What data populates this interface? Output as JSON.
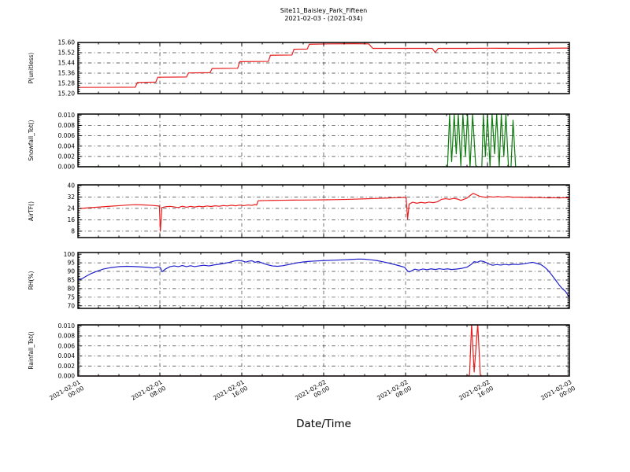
{
  "title": {
    "line1": "Site11_Baisley_Park_Fifteen",
    "line2": "2021-02-03 - (2021-034)"
  },
  "xlabel": "Date/Time",
  "x_axis": {
    "unit": "hours since 2021-02-01 00:00",
    "range": [
      0,
      48
    ],
    "tick_interval_hours": 8,
    "grid": true
  },
  "x_ticks": [
    {
      "date": "2021-02-01",
      "time": "00:00"
    },
    {
      "date": "2021-02-01",
      "time": "08:00"
    },
    {
      "date": "2021-02-01",
      "time": "16:00"
    },
    {
      "date": "2021-02-02",
      "time": "00:00"
    },
    {
      "date": "2021-02-02",
      "time": "08:00"
    },
    {
      "date": "2021-02-02",
      "time": "16:00"
    },
    {
      "date": "2021-02-03",
      "time": "00:00"
    }
  ],
  "chart_data": [
    {
      "type": "line",
      "ylabel": "P(unitless)",
      "color": "#e81e1e",
      "ylim": [
        15.2,
        15.6
      ],
      "yticks": [
        15.2,
        15.28,
        15.36,
        15.44,
        15.52,
        15.6
      ],
      "ytick_labels": [
        "15.20",
        "15.28",
        "15.36",
        "15.44",
        "15.52",
        "15.60"
      ],
      "ygrid": [
        15.28,
        15.36,
        15.44,
        15.52
      ],
      "points": [
        [
          0,
          15.248
        ],
        [
          3,
          15.249
        ],
        [
          5.6,
          15.25
        ],
        [
          5.8,
          15.287
        ],
        [
          7.6,
          15.29
        ],
        [
          7.8,
          15.328
        ],
        [
          10.6,
          15.33
        ],
        [
          10.8,
          15.362
        ],
        [
          12.9,
          15.364
        ],
        [
          13.1,
          15.396
        ],
        [
          15.6,
          15.398
        ],
        [
          15.8,
          15.45
        ],
        [
          18.6,
          15.452
        ],
        [
          18.8,
          15.5
        ],
        [
          20.9,
          15.502
        ],
        [
          21.1,
          15.547
        ],
        [
          22.4,
          15.549
        ],
        [
          22.6,
          15.586
        ],
        [
          24.5,
          15.589
        ],
        [
          27,
          15.59
        ],
        [
          28.4,
          15.589
        ],
        [
          28.8,
          15.554
        ],
        [
          31,
          15.554
        ],
        [
          34.6,
          15.554
        ],
        [
          34.9,
          15.522
        ],
        [
          35.2,
          15.554
        ],
        [
          38,
          15.554
        ],
        [
          40,
          15.555
        ],
        [
          44,
          15.554
        ],
        [
          48,
          15.556
        ]
      ]
    },
    {
      "type": "line",
      "ylabel": "Snowfall_Tot()",
      "color": "#0e7c0e",
      "ylim": [
        0,
        0.0102
      ],
      "yticks": [
        0.0,
        0.002,
        0.004,
        0.006,
        0.008,
        0.01
      ],
      "ytick_labels": [
        "0.000",
        "0.002",
        "0.004",
        "0.006",
        "0.008",
        "0.010"
      ],
      "ygrid": [
        0.002,
        0.004,
        0.006,
        0.008
      ],
      "points": [
        [
          0,
          0
        ],
        [
          36.1,
          0
        ],
        [
          36.3,
          0.0101
        ],
        [
          36.5,
          0.001
        ],
        [
          36.75,
          0.0101
        ],
        [
          36.95,
          0.0025
        ],
        [
          37.15,
          0.0101
        ],
        [
          37.4,
          0.0002
        ],
        [
          37.6,
          0.0101
        ],
        [
          37.85,
          0.002
        ],
        [
          38.05,
          0.0101
        ],
        [
          38.3,
          0
        ],
        [
          38.55,
          0.0101
        ],
        [
          38.85,
          0.0003
        ],
        [
          39.0,
          0
        ],
        [
          39.45,
          0
        ],
        [
          39.6,
          0.0101
        ],
        [
          39.8,
          0.002
        ],
        [
          40.0,
          0.0101
        ],
        [
          40.25,
          0
        ],
        [
          40.45,
          0.0101
        ],
        [
          40.7,
          0.0025
        ],
        [
          40.9,
          0.0101
        ],
        [
          41.15,
          0
        ],
        [
          41.35,
          0.0101
        ],
        [
          41.6,
          0.002
        ],
        [
          41.8,
          0.0101
        ],
        [
          42.05,
          0
        ],
        [
          42.3,
          0
        ],
        [
          42.5,
          0.009
        ],
        [
          42.75,
          0
        ],
        [
          43,
          0
        ],
        [
          48,
          0
        ]
      ]
    },
    {
      "type": "line",
      "ylabel": "AirTF()",
      "color": "#e81e1e",
      "ylim": [
        3.5,
        40.5
      ],
      "yticks": [
        8,
        16,
        24,
        32,
        40
      ],
      "ytick_labels": [
        "8",
        "16",
        "24",
        "32",
        "40"
      ],
      "ygrid": [
        8,
        16,
        24,
        32
      ],
      "points": [
        [
          0,
          23.8
        ],
        [
          0.8,
          24.3
        ],
        [
          1.6,
          24.7
        ],
        [
          2.4,
          25.1
        ],
        [
          3.2,
          25.5
        ],
        [
          4,
          25.9
        ],
        [
          4.8,
          26.3
        ],
        [
          5.6,
          26.6
        ],
        [
          6.4,
          26.4
        ],
        [
          7.2,
          26.1
        ],
        [
          7.7,
          25.8
        ],
        [
          7.95,
          25.6
        ],
        [
          8.05,
          8
        ],
        [
          8.2,
          24.6
        ],
        [
          8.6,
          25.2
        ],
        [
          9,
          25.4
        ],
        [
          9.4,
          25.0
        ],
        [
          9.8,
          24.6
        ],
        [
          10.2,
          25.5
        ],
        [
          10.6,
          24.8
        ],
        [
          11,
          25.4
        ],
        [
          11.4,
          24.9
        ],
        [
          11.8,
          25.5
        ],
        [
          12.2,
          25.1
        ],
        [
          12.6,
          25.7
        ],
        [
          13,
          25.3
        ],
        [
          13.4,
          25.8
        ],
        [
          13.8,
          25.5
        ],
        [
          14.2,
          26.0
        ],
        [
          14.6,
          25.7
        ],
        [
          15,
          26.2
        ],
        [
          15.4,
          25.8
        ],
        [
          15.8,
          26.3
        ],
        [
          16.2,
          25.9
        ],
        [
          16.6,
          26.4
        ],
        [
          17,
          26.1
        ],
        [
          17.3,
          26.7
        ],
        [
          17.45,
          26.3
        ],
        [
          17.6,
          29.3
        ],
        [
          18.2,
          29.5
        ],
        [
          19,
          29.6
        ],
        [
          20,
          29.7
        ],
        [
          21,
          29.8
        ],
        [
          22,
          29.85
        ],
        [
          23,
          29.9
        ],
        [
          24,
          30.0
        ],
        [
          25,
          30.1
        ],
        [
          26,
          30.25
        ],
        [
          27,
          30.45
        ],
        [
          28,
          30.7
        ],
        [
          29,
          30.95
        ],
        [
          30,
          31.2
        ],
        [
          31,
          31.5
        ],
        [
          31.9,
          31.7
        ],
        [
          32.05,
          31.7
        ],
        [
          32.2,
          16.5
        ],
        [
          32.35,
          27.0
        ],
        [
          32.7,
          28.3
        ],
        [
          33.1,
          27.6
        ],
        [
          33.5,
          28.2
        ],
        [
          33.9,
          27.8
        ],
        [
          34.3,
          28.4
        ],
        [
          34.7,
          28.0
        ],
        [
          35.1,
          28.6
        ],
        [
          35.5,
          30.3
        ],
        [
          35.9,
          30.8
        ],
        [
          36.3,
          30.4
        ],
        [
          36.7,
          31.0
        ],
        [
          37.1,
          30.5
        ],
        [
          37.4,
          29.6
        ],
        [
          37.7,
          30.4
        ],
        [
          38,
          31.2
        ],
        [
          38.3,
          33.0
        ],
        [
          38.6,
          34.5
        ],
        [
          38.9,
          33.6
        ],
        [
          39.2,
          32.6
        ],
        [
          39.5,
          32.1
        ],
        [
          39.8,
          31.8
        ],
        [
          40.2,
          32.2
        ],
        [
          40.6,
          31.9
        ],
        [
          41,
          32.3
        ],
        [
          41.5,
          31.9
        ],
        [
          42,
          32.2
        ],
        [
          42.5,
          31.8
        ],
        [
          43,
          31.9
        ],
        [
          43.5,
          31.7
        ],
        [
          44,
          31.8
        ],
        [
          44.5,
          31.6
        ],
        [
          45,
          31.7
        ],
        [
          45.5,
          31.5
        ],
        [
          46,
          31.4
        ],
        [
          46.5,
          31.5
        ],
        [
          47,
          31.3
        ],
        [
          47.5,
          31.5
        ],
        [
          48,
          31.3
        ]
      ]
    },
    {
      "type": "line",
      "ylabel": "RH(%)",
      "color": "#2020cc",
      "ylim": [
        68.5,
        101
      ],
      "yticks": [
        70,
        75,
        80,
        85,
        90,
        95,
        100
      ],
      "ytick_labels": [
        "70",
        "75",
        "80",
        "85",
        "90",
        "95",
        "100"
      ],
      "ygrid": [
        70,
        75,
        80,
        85,
        90,
        95
      ],
      "points": [
        [
          0,
          85
        ],
        [
          0.4,
          85.8
        ],
        [
          0.8,
          87.2
        ],
        [
          1.3,
          88.8
        ],
        [
          1.9,
          90.2
        ],
        [
          2.5,
          91.4
        ],
        [
          3.2,
          92.2
        ],
        [
          4,
          92.8
        ],
        [
          4.8,
          93.0
        ],
        [
          5.6,
          92.8
        ],
        [
          6.3,
          92.6
        ],
        [
          6.9,
          92.3
        ],
        [
          7.4,
          92.0
        ],
        [
          7.8,
          92.6
        ],
        [
          8.05,
          92.2
        ],
        [
          8.2,
          89.8
        ],
        [
          8.6,
          91.6
        ],
        [
          9,
          92.8
        ],
        [
          9.4,
          93.2
        ],
        [
          9.8,
          92.8
        ],
        [
          10.2,
          93.4
        ],
        [
          10.6,
          92.8
        ],
        [
          11,
          93.3
        ],
        [
          11.4,
          92.8
        ],
        [
          11.8,
          93.2
        ],
        [
          12.3,
          93.6
        ],
        [
          12.8,
          93.2
        ],
        [
          13.3,
          93.8
        ],
        [
          13.8,
          94.2
        ],
        [
          14.3,
          94.7
        ],
        [
          14.8,
          95.3
        ],
        [
          15.3,
          96.1
        ],
        [
          15.7,
          96.4
        ],
        [
          16.1,
          96.0
        ],
        [
          16.4,
          95.4
        ],
        [
          16.7,
          96.0
        ],
        [
          17,
          96.2
        ],
        [
          17.3,
          95.3
        ],
        [
          17.6,
          95.8
        ],
        [
          18,
          94.9
        ],
        [
          18.5,
          93.9
        ],
        [
          19,
          93.2
        ],
        [
          19.5,
          93.0
        ],
        [
          20,
          93.3
        ],
        [
          20.5,
          93.9
        ],
        [
          21,
          94.5
        ],
        [
          21.5,
          95.1
        ],
        [
          22,
          95.5
        ],
        [
          22.5,
          95.8
        ],
        [
          23,
          96.0
        ],
        [
          24,
          96.3
        ],
        [
          25,
          96.5
        ],
        [
          26,
          96.8
        ],
        [
          26.7,
          97.0
        ],
        [
          27.4,
          97.2
        ],
        [
          28,
          97.1
        ],
        [
          28.6,
          96.8
        ],
        [
          29.2,
          96.3
        ],
        [
          29.8,
          95.6
        ],
        [
          30.4,
          94.8
        ],
        [
          31,
          93.9
        ],
        [
          31.5,
          93.1
        ],
        [
          31.9,
          92.4
        ],
        [
          32.2,
          90.3
        ],
        [
          32.35,
          89.7
        ],
        [
          32.6,
          90.4
        ],
        [
          32.9,
          91.3
        ],
        [
          33.3,
          90.8
        ],
        [
          33.7,
          91.4
        ],
        [
          34.1,
          91.0
        ],
        [
          34.5,
          91.5
        ],
        [
          34.9,
          91.1
        ],
        [
          35.3,
          91.6
        ],
        [
          35.7,
          91.2
        ],
        [
          36.1,
          91.5
        ],
        [
          36.5,
          91.1
        ],
        [
          37,
          91.4
        ],
        [
          37.5,
          91.8
        ],
        [
          38,
          92.5
        ],
        [
          38.4,
          94.0
        ],
        [
          38.7,
          95.7
        ],
        [
          39,
          95.3
        ],
        [
          39.3,
          96.1
        ],
        [
          39.6,
          95.8
        ],
        [
          39.9,
          95.1
        ],
        [
          40.2,
          94.2
        ],
        [
          40.5,
          93.6
        ],
        [
          40.9,
          94.0
        ],
        [
          41.3,
          93.7
        ],
        [
          41.7,
          94.1
        ],
        [
          42.1,
          93.8
        ],
        [
          42.5,
          94.2
        ],
        [
          43,
          94.0
        ],
        [
          43.5,
          94.4
        ],
        [
          44,
          94.9
        ],
        [
          44.4,
          95.3
        ],
        [
          44.8,
          94.7
        ],
        [
          45.2,
          94.0
        ],
        [
          45.5,
          92.9
        ],
        [
          45.8,
          91.3
        ],
        [
          46.1,
          89.3
        ],
        [
          46.4,
          87.0
        ],
        [
          46.7,
          84.6
        ],
        [
          47,
          82.2
        ],
        [
          47.3,
          80.0
        ],
        [
          47.6,
          78.5
        ],
        [
          47.8,
          76.8
        ],
        [
          48,
          74.6
        ]
      ]
    },
    {
      "type": "line",
      "ylabel": "Rainfall_Tot()",
      "color": "#e81e1e",
      "ylim": [
        0,
        0.0102
      ],
      "yticks": [
        0.0,
        0.002,
        0.004,
        0.006,
        0.008,
        0.01
      ],
      "ytick_labels": [
        "0.000",
        "0.002",
        "0.004",
        "0.006",
        "0.008",
        "0.010"
      ],
      "ygrid": [
        0.002,
        0.004,
        0.006,
        0.008
      ],
      "points": [
        [
          0,
          0
        ],
        [
          38.1,
          0
        ],
        [
          38.25,
          0.0003
        ],
        [
          38.45,
          0.0104
        ],
        [
          38.7,
          0.0008
        ],
        [
          39.05,
          0.0104
        ],
        [
          39.3,
          0.0003
        ],
        [
          39.45,
          0
        ],
        [
          48,
          0
        ]
      ]
    }
  ]
}
